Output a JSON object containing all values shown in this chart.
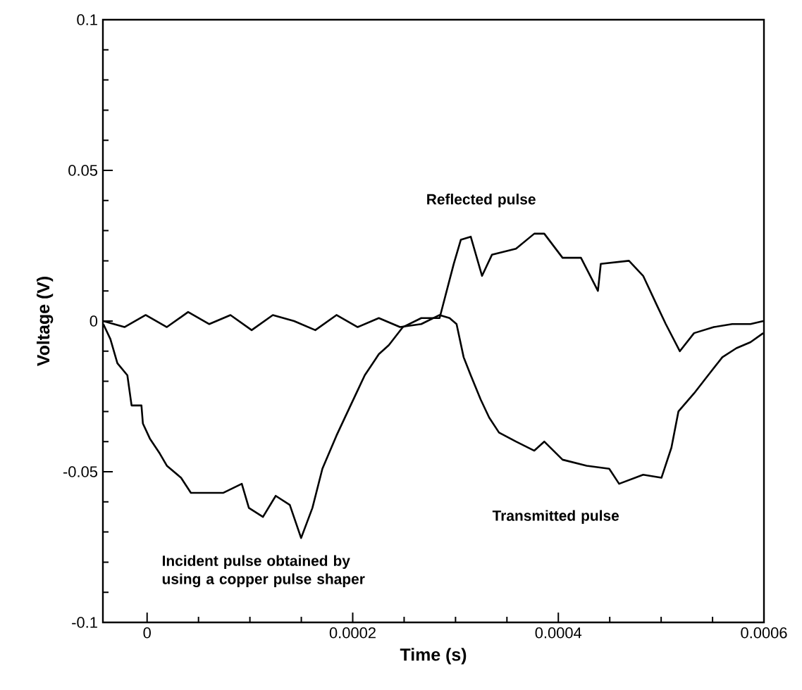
{
  "chart_data": {
    "type": "line",
    "xlabel": "Time (s)",
    "ylabel": "Voltage (V)",
    "xlim": [
      -4.3e-05,
      0.0006
    ],
    "ylim": [
      -0.1,
      0.1
    ],
    "xticks": [
      0,
      0.0002,
      0.0004,
      0.0006
    ],
    "yticks": [
      -0.1,
      -0.05,
      0,
      0.05,
      0.1
    ],
    "series": [
      {
        "color": "#000000",
        "x": [
          -4.26e-05,
          -3.57e-05,
          -2.89e-05,
          -1.92e-05,
          -1.51e-05,
          -5.5e-06,
          -4.1e-06,
          2.7e-06,
          1.24e-05,
          1.92e-05,
          3.3e-05,
          4.26e-05,
          6.05e-05,
          7.42e-05,
          9.21e-05,
          9.9e-05,
          0.0001127,
          0.0001251,
          0.0001388,
          0.0001498,
          0.0001608,
          0.0001705,
          0.0001842,
          0.0001979,
          0.0002117,
          0.0002254,
          0.0002351,
          0.0002488,
          0.0002667,
          0.0002845,
          0.0002914,
          0.0002983,
          0.0003052,
          0.0003148,
          0.0003258,
          0.0003354,
          0.0003588,
          0.0003766,
          0.0003863,
          0.0004041,
          0.000422,
          0.0004385,
          0.0004413,
          0.0004687,
          0.0004825,
          0.0004962,
          0.0005045,
          0.0005182,
          0.000532,
          0.0005512,
          0.0005691,
          0.0005869,
          0.0005993
        ],
        "values": [
          -0.001,
          -0.006,
          -0.014,
          -0.018,
          -0.028,
          -0.028,
          -0.034,
          -0.039,
          -0.044,
          -0.048,
          -0.052,
          -0.057,
          -0.057,
          -0.057,
          -0.054,
          -0.062,
          -0.065,
          -0.058,
          -0.061,
          -0.072,
          -0.062,
          -0.049,
          -0.038,
          -0.028,
          -0.018,
          -0.011,
          -0.008,
          -0.002,
          0.001,
          0.001,
          0.01,
          0.019,
          0.027,
          0.028,
          0.015,
          0.022,
          0.024,
          0.029,
          0.029,
          0.021,
          0.021,
          0.01,
          0.019,
          0.02,
          0.015,
          0.005,
          -0.001,
          -0.01,
          -0.004,
          -0.002,
          -0.001,
          -0.001,
          0
        ]
      },
      {
        "color": "#000000",
        "x": [
          -4.26e-05,
          -2.2e-05,
          -1.4e-06,
          1.92e-05,
          3.99e-05,
          6.05e-05,
          8.11e-05,
          0.0001017,
          0.0001223,
          0.000143,
          0.0001636,
          0.0001842,
          0.0002048,
          0.0002254,
          0.000246,
          0.0002667,
          0.0002845,
          0.0002942,
          0.000301,
          0.0003079,
          0.0003148,
          0.0003244,
          0.0003327,
          0.0003423,
          0.0003588,
          0.0003766,
          0.0003863,
          0.0004041,
          0.0004275,
          0.0004495,
          0.0004591,
          0.0004825,
          0.0005003,
          0.00051,
          0.0005168,
          0.000532,
          0.0005457,
          0.0005595,
          0.0005732,
          0.0005869,
          0.0005993
        ],
        "values": [
          0,
          -0.002,
          0.002,
          -0.002,
          0.003,
          -0.001,
          0.002,
          -0.003,
          0.002,
          0,
          -0.003,
          0.002,
          -0.002,
          0.001,
          -0.002,
          -0.001,
          0.002,
          0.001,
          -0.001,
          -0.012,
          -0.018,
          -0.026,
          -0.032,
          -0.037,
          -0.04,
          -0.043,
          -0.04,
          -0.046,
          -0.048,
          -0.049,
          -0.054,
          -0.051,
          -0.052,
          -0.042,
          -0.03,
          -0.024,
          -0.018,
          -0.012,
          -0.009,
          -0.007,
          -0.004
        ]
      }
    ],
    "annotations": [
      "Reflected pulse",
      "Transmitted pulse",
      "Incident pulse obtained by using a copper pulse shaper"
    ]
  }
}
